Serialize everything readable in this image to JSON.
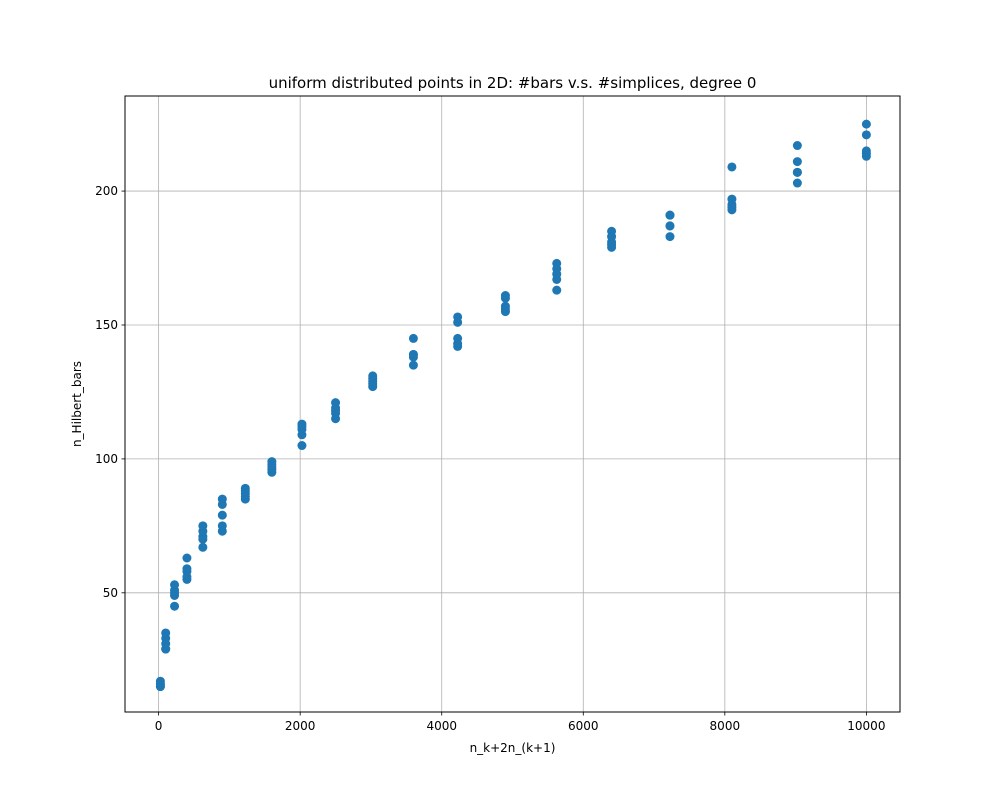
{
  "chart_data": {
    "type": "scatter",
    "title": "uniform distributed points in 2D: #bars v.s. #simplices, degree 0",
    "xlabel": "n_k+2n_(k+1)",
    "ylabel": "n_Hilbert_bars",
    "xlim": [
      -475,
      10475
    ],
    "ylim": [
      5.5,
      235.5
    ],
    "xticks": [
      0,
      2000,
      4000,
      6000,
      8000,
      10000
    ],
    "yticks": [
      50,
      100,
      150,
      200
    ],
    "grid": true,
    "marker_color": "#1f77b4",
    "series": [
      {
        "points": [
          [
            25,
            15
          ],
          [
            25,
            16
          ],
          [
            25,
            17
          ],
          [
            25,
            15
          ],
          [
            25,
            16
          ],
          [
            100,
            29
          ],
          [
            100,
            31
          ],
          [
            100,
            33
          ],
          [
            100,
            35
          ],
          [
            100,
            29
          ],
          [
            225,
            45
          ],
          [
            225,
            49
          ],
          [
            225,
            51
          ],
          [
            225,
            53
          ],
          [
            225,
            50
          ],
          [
            400,
            55
          ],
          [
            400,
            56
          ],
          [
            400,
            58
          ],
          [
            400,
            59
          ],
          [
            400,
            63
          ],
          [
            625,
            67
          ],
          [
            625,
            70
          ],
          [
            625,
            71
          ],
          [
            625,
            73
          ],
          [
            625,
            75
          ],
          [
            900,
            73
          ],
          [
            900,
            75
          ],
          [
            900,
            79
          ],
          [
            900,
            83
          ],
          [
            900,
            85
          ],
          [
            1225,
            85
          ],
          [
            1225,
            86
          ],
          [
            1225,
            87
          ],
          [
            1225,
            88
          ],
          [
            1225,
            89
          ],
          [
            1600,
            95
          ],
          [
            1600,
            96
          ],
          [
            1600,
            97
          ],
          [
            1600,
            98
          ],
          [
            1600,
            99
          ],
          [
            2025,
            105
          ],
          [
            2025,
            109
          ],
          [
            2025,
            111
          ],
          [
            2025,
            112
          ],
          [
            2025,
            113
          ],
          [
            2500,
            115
          ],
          [
            2500,
            117
          ],
          [
            2500,
            118
          ],
          [
            2500,
            119
          ],
          [
            2500,
            121
          ],
          [
            3025,
            127
          ],
          [
            3025,
            128
          ],
          [
            3025,
            129
          ],
          [
            3025,
            130
          ],
          [
            3025,
            131
          ],
          [
            3600,
            135
          ],
          [
            3600,
            138
          ],
          [
            3600,
            139
          ],
          [
            3600,
            139
          ],
          [
            3600,
            145
          ],
          [
            4225,
            142
          ],
          [
            4225,
            143
          ],
          [
            4225,
            145
          ],
          [
            4225,
            151
          ],
          [
            4225,
            153
          ],
          [
            4900,
            155
          ],
          [
            4900,
            156
          ],
          [
            4900,
            157
          ],
          [
            4900,
            160
          ],
          [
            4900,
            161
          ],
          [
            5625,
            163
          ],
          [
            5625,
            167
          ],
          [
            5625,
            169
          ],
          [
            5625,
            171
          ],
          [
            5625,
            173
          ],
          [
            6400,
            179
          ],
          [
            6400,
            180
          ],
          [
            6400,
            181
          ],
          [
            6400,
            183
          ],
          [
            6400,
            185
          ],
          [
            7225,
            183
          ],
          [
            7225,
            187
          ],
          [
            7225,
            187
          ],
          [
            7225,
            191
          ],
          [
            7225,
            191
          ],
          [
            8100,
            193
          ],
          [
            8100,
            194
          ],
          [
            8100,
            195
          ],
          [
            8100,
            197
          ],
          [
            8100,
            209
          ],
          [
            9025,
            203
          ],
          [
            9025,
            207
          ],
          [
            9025,
            207
          ],
          [
            9025,
            211
          ],
          [
            9025,
            217
          ],
          [
            10000,
            213
          ],
          [
            10000,
            214
          ],
          [
            10000,
            215
          ],
          [
            10000,
            221
          ],
          [
            10000,
            225
          ]
        ]
      }
    ]
  }
}
